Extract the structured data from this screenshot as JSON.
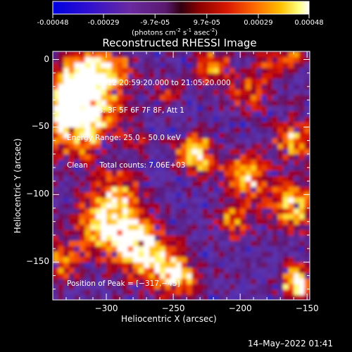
{
  "colorbar": {
    "ticks": [
      "-0.00048",
      "-0.00029",
      "-9.7e-05",
      "9.7e-05",
      "0.00029",
      "0.00048"
    ],
    "tick_values": [
      -0.00048,
      -0.00029,
      -9.7e-05,
      9.7e-05,
      0.00029,
      0.00048
    ],
    "range": [
      -0.00048,
      0.00048
    ],
    "units_main": "(photons cm",
    "units_sup1": "-2",
    "units_mid": " s",
    "units_sup2": "-1",
    "units_end": " asec",
    "units_sup3": "-2",
    "units_close": ")"
  },
  "chart_data": {
    "type": "heatmap",
    "title": "Reconstructed RHESSI Image",
    "xlabel": "Heliocentric X (arcsec)",
    "ylabel": "Heliocentric Y (arcsec)",
    "xlim": [
      -340,
      -148
    ],
    "ylim": [
      -178,
      6
    ],
    "xticks": [
      -300,
      -250,
      -200,
      -150
    ],
    "yticks": [
      0,
      -50,
      -100,
      -150
    ],
    "xtick_labels": [
      "−300",
      "−250",
      "−200",
      "−150"
    ],
    "ytick_labels": [
      "0",
      "−50",
      "−100",
      "−150"
    ],
    "colormap": "rainbow/hot (blue-purple-red-orange-yellow-white)",
    "annotations": {
      "time": "31–Aug–2012 20:59:20.000 to 21:05:20.000",
      "detectors": "Detectors: 3F 5F 6F 7F 8F, Att 1",
      "energy": "Energy Range: 25.0 – 50.0 keV",
      "method": "Clean     Total counts: 7.06E+03",
      "peak": "Position of Peak = [−317,−45]"
    },
    "peak_position": [
      -317,
      -45
    ]
  },
  "footer": {
    "date": "14–May–2022 01:41"
  },
  "colors": {
    "background": "#000000",
    "frame": "#ffffff",
    "text": "#ffffff"
  }
}
